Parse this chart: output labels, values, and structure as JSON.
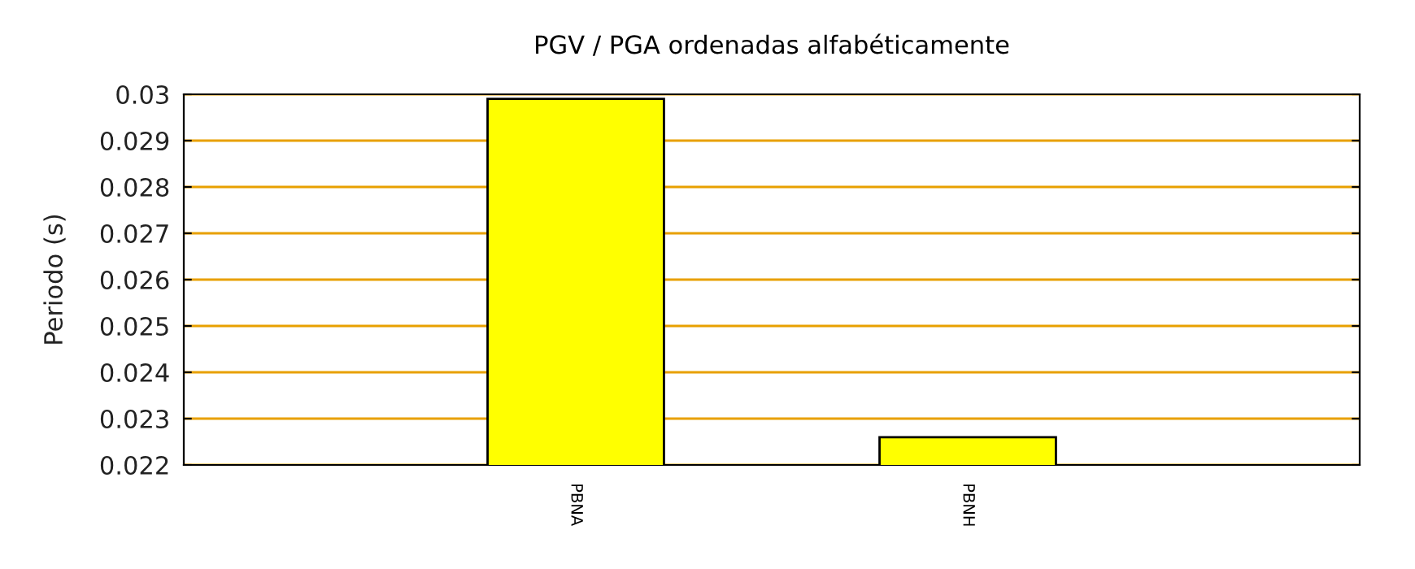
{
  "chart_data": {
    "type": "bar",
    "title": "PGV / PGA ordenadas alfabéticamente",
    "ylabel": "Periodo (s)",
    "categories": [
      "PBNA",
      "PBNH"
    ],
    "values": [
      0.0299,
      0.0226
    ],
    "color": "#ffff00",
    "ylim": [
      0.022,
      0.03
    ],
    "yticks": [
      {
        "value": 0.022,
        "label": "0.022"
      },
      {
        "value": 0.023,
        "label": "0.023"
      },
      {
        "value": 0.024,
        "label": "0.024"
      },
      {
        "value": 0.025,
        "label": "0.025"
      },
      {
        "value": 0.026,
        "label": "0.026"
      },
      {
        "value": 0.027,
        "label": "0.027"
      },
      {
        "value": 0.028,
        "label": "0.028"
      },
      {
        "value": 0.029,
        "label": "0.029"
      },
      {
        "value": 0.03,
        "label": "0.03"
      }
    ],
    "grid": "y"
  }
}
